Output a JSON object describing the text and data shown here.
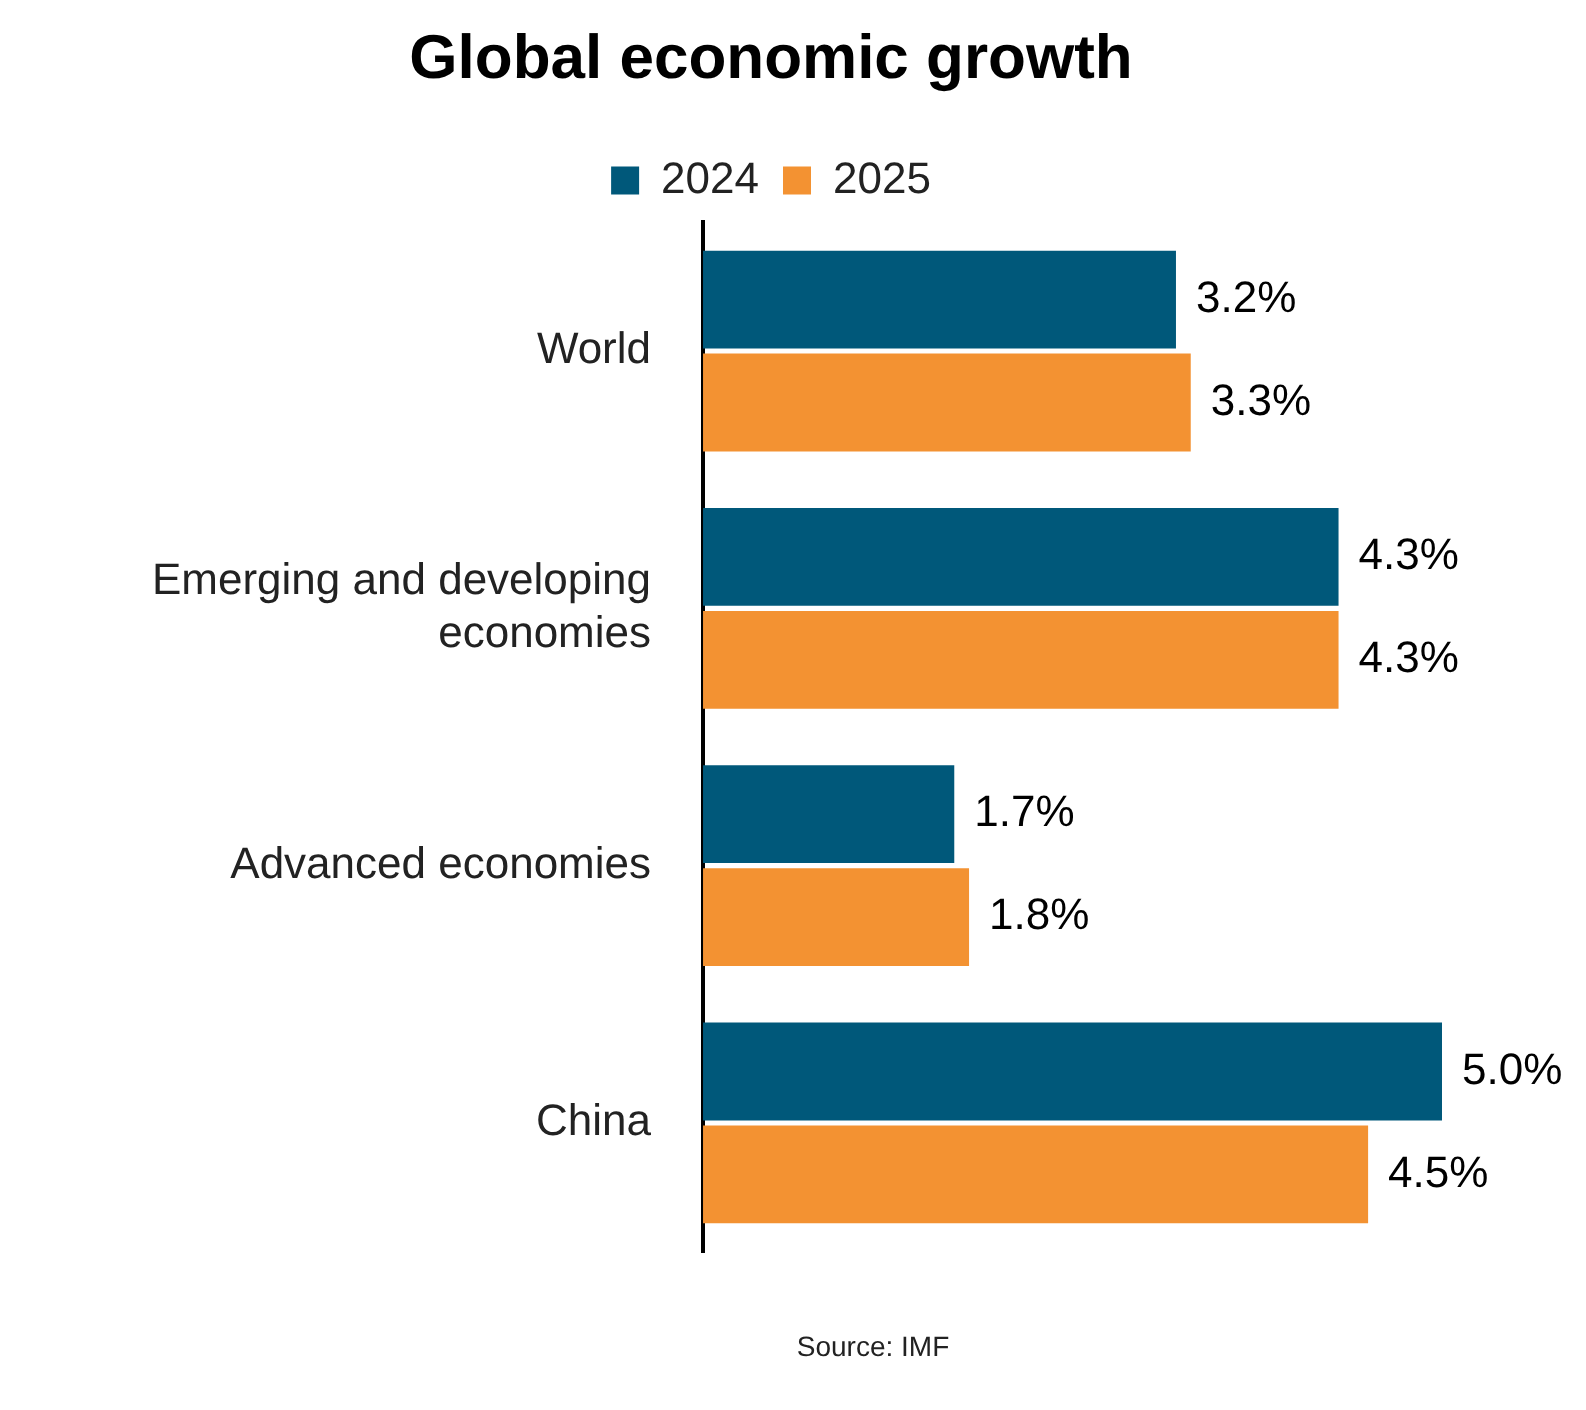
{
  "chart_data": {
    "type": "bar",
    "orientation": "horizontal",
    "title": "Global economic growth",
    "categories": [
      "World",
      "Emerging and developing economies",
      "Advanced economies",
      "China"
    ],
    "series": [
      {
        "name": "2024",
        "color": "#00587a",
        "values": [
          3.2,
          4.3,
          1.7,
          5.0
        ],
        "value_labels": [
          "3.2%",
          "4.3%",
          "1.7%",
          "5.0%"
        ]
      },
      {
        "name": "2025",
        "color": "#f39232",
        "values": [
          3.3,
          4.3,
          1.8,
          4.5
        ],
        "value_labels": [
          "3.3%",
          "4.3%",
          "1.8%",
          "4.5%"
        ]
      }
    ],
    "legend": "top",
    "annotations": [
      "Source: IMF"
    ]
  }
}
